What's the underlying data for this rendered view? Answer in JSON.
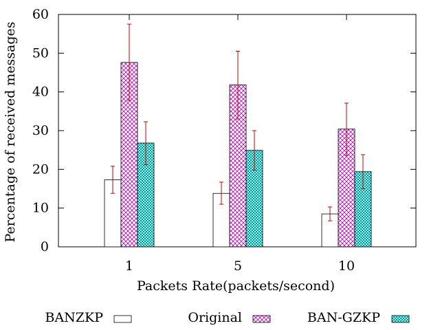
{
  "chart_data": {
    "type": "bar",
    "title": "",
    "xlabel": "Packets Rate(packets/second)",
    "ylabel": "Percentage of received messages",
    "ylim": [
      0,
      60
    ],
    "yticks": [
      0,
      10,
      20,
      30,
      40,
      50,
      60
    ],
    "categories": [
      "1",
      "5",
      "10"
    ],
    "grid": false,
    "legend_position": "bottom",
    "series": [
      {
        "name": "BANZKP",
        "values": [
          17.3,
          13.8,
          8.5
        ],
        "error_low": [
          13.8,
          11.0,
          6.7
        ],
        "error_high": [
          20.8,
          16.7,
          10.3
        ],
        "fill": "none"
      },
      {
        "name": "Original",
        "values": [
          47.6,
          41.8,
          30.4
        ],
        "error_low": [
          37.8,
          33.0,
          23.6
        ],
        "error_high": [
          57.5,
          50.5,
          37.1
        ],
        "fill": "crosshatch",
        "color": "#b000b0"
      },
      {
        "name": "BAN-GZKP",
        "values": [
          26.8,
          24.9,
          19.4
        ],
        "error_low": [
          21.2,
          19.8,
          15.0
        ],
        "error_high": [
          32.3,
          30.0,
          23.8
        ],
        "fill": "dots",
        "color": "#009a9a"
      }
    ],
    "errorbar_color": "#cc0000"
  }
}
